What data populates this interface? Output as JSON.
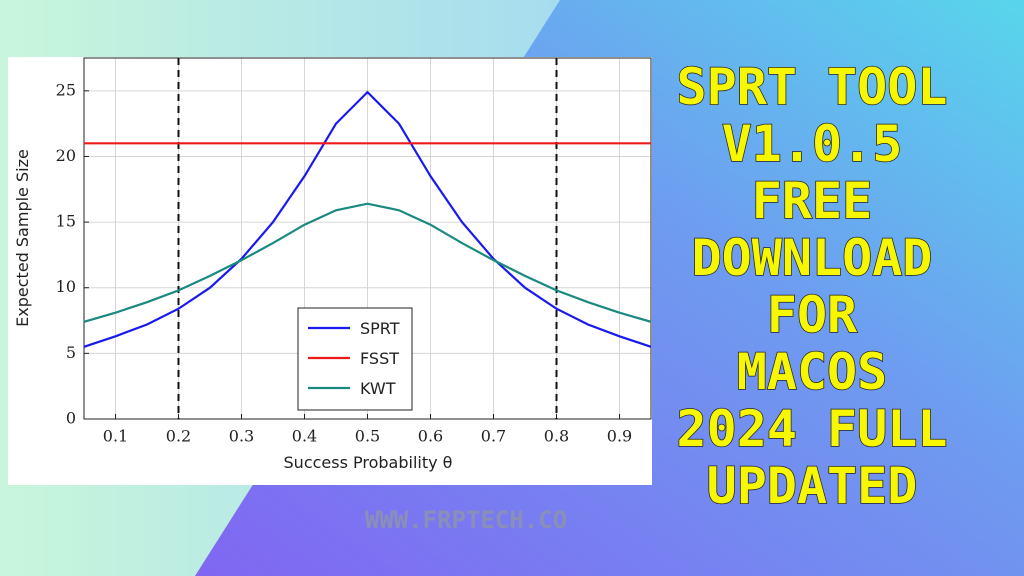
{
  "chart_data": {
    "type": "line",
    "xlabel": "Success Probability θ",
    "ylabel": "Expected Sample Size",
    "x": [
      0.05,
      0.1,
      0.15,
      0.2,
      0.25,
      0.3,
      0.35,
      0.4,
      0.45,
      0.5,
      0.55,
      0.6,
      0.65,
      0.7,
      0.75,
      0.8,
      0.85,
      0.9,
      0.95
    ],
    "series": [
      {
        "name": "SPRT",
        "color": "#1a1aee",
        "values": [
          5.5,
          6.3,
          7.2,
          8.4,
          10,
          12.2,
          15,
          18.5,
          22.5,
          24.9,
          22.5,
          18.5,
          15,
          12.2,
          10,
          8.4,
          7.2,
          6.3,
          5.5
        ]
      },
      {
        "name": "FSST",
        "color": "#ee1a1a",
        "values": [
          21,
          21,
          21,
          21,
          21,
          21,
          21,
          21,
          21,
          21,
          21,
          21,
          21,
          21,
          21,
          21,
          21,
          21,
          21
        ]
      },
      {
        "name": "KWT",
        "color": "#1a8a80",
        "values": [
          7.4,
          8.1,
          8.9,
          9.8,
          10.9,
          12.1,
          13.4,
          14.8,
          15.9,
          16.4,
          15.9,
          14.8,
          13.4,
          12.1,
          10.9,
          9.8,
          8.9,
          8.1,
          7.4
        ]
      }
    ],
    "vlines": [
      0.2,
      0.8
    ],
    "xlim": [
      0.05,
      0.95
    ],
    "ylim": [
      0,
      27.5
    ],
    "xticks": [
      0.1,
      0.2,
      0.3,
      0.4,
      0.5,
      0.6,
      0.7,
      0.8,
      0.9
    ],
    "yticks": [
      0,
      5,
      10,
      15,
      20,
      25
    ],
    "grid": true,
    "legend": "lower center"
  },
  "headline": [
    "SPRT TOOL",
    "V1.0.5",
    "FREE",
    "DOWNLOAD",
    "FOR",
    "MACOS",
    "2024 FULL",
    "UPDATED"
  ],
  "watermark": "WWW.FRPTECH.CO"
}
